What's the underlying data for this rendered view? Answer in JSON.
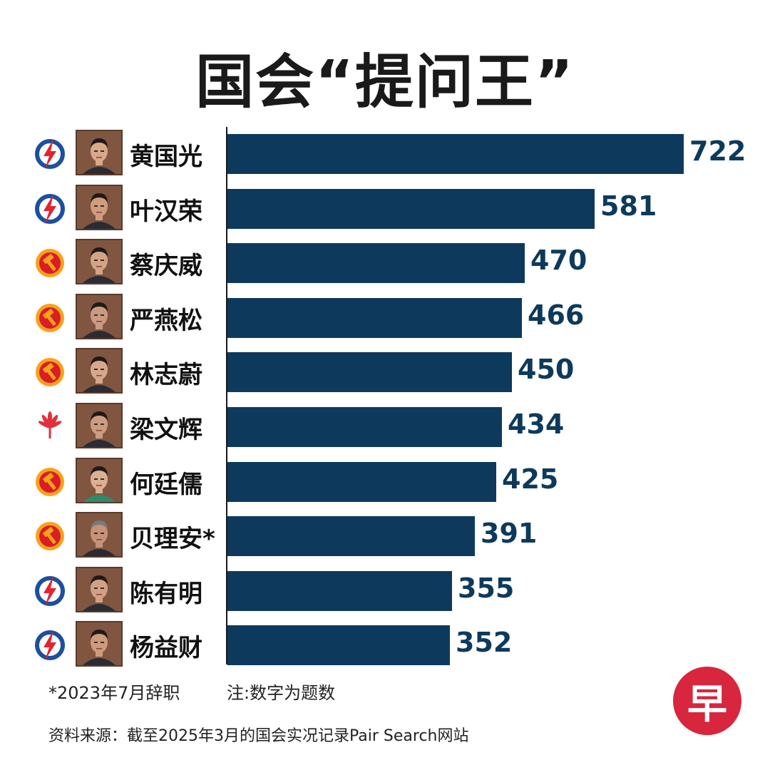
{
  "title": "国会“提问王”",
  "colors": {
    "bar": "#0d3a5c",
    "value": "#0d3a5c",
    "pap_blue": "#1d4fa0",
    "pap_red": "#e32330",
    "wp_orange": "#f7a21b",
    "wp_red": "#d91e26",
    "psp_red": "#e0313c"
  },
  "chart_data": {
    "type": "bar",
    "orientation": "horizontal",
    "title": "国会“提问王”",
    "categories": [
      "黄国光",
      "叶汉荣",
      "蔡庆威",
      "严燕松",
      "林志蔚",
      "梁文辉",
      "何廷儒",
      "贝理安*",
      "陈有明",
      "杨益财"
    ],
    "values": [
      722,
      581,
      470,
      466,
      450,
      434,
      425,
      391,
      355,
      352
    ],
    "party_icons": [
      "pap-logo-icon",
      "pap-logo-icon",
      "wp-hammer-icon",
      "wp-hammer-icon",
      "wp-hammer-icon",
      "psp-flower-icon",
      "wp-hammer-icon",
      "wp-hammer-icon",
      "pap-logo-icon",
      "pap-logo-icon"
    ],
    "xlim": [
      0,
      722
    ],
    "grid": false,
    "legend": "none"
  },
  "footnote": "*2023年7月辞职",
  "note": "注:数字为题数",
  "source": "资料来源：截至2025年3月的国会实况记录Pair Search网站",
  "logo_text": "早"
}
